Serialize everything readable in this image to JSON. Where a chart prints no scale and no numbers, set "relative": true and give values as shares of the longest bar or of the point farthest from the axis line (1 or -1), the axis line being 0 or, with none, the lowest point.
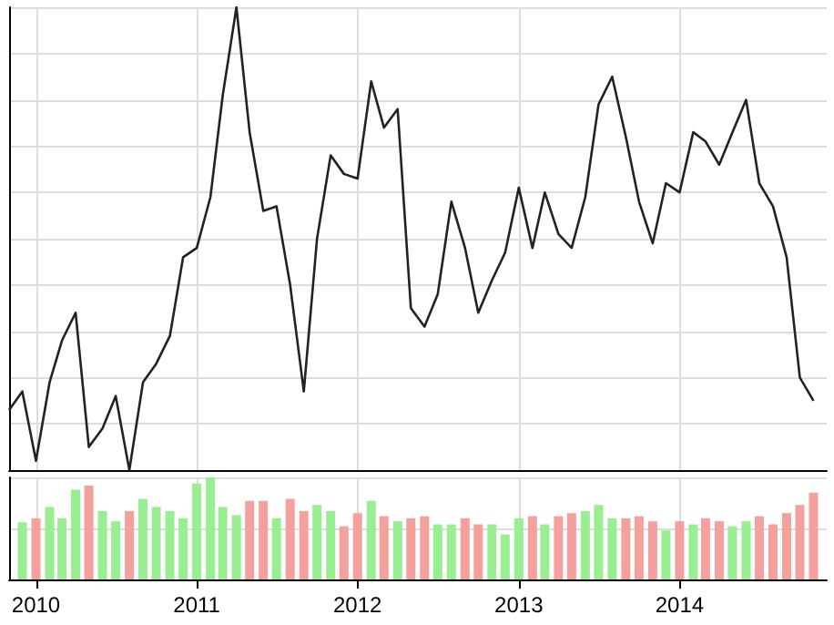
{
  "chart_data": [
    {
      "type": "line",
      "relative": true,
      "tick_labels": false,
      "grid": true,
      "marker": "none",
      "line_style": "solid",
      "xlim": [
        "2009-11",
        "2014-12"
      ],
      "xticks": [
        "2010",
        "2011",
        "2012",
        "2013",
        "2014"
      ],
      "series": [
        {
          "color": "#222222",
          "x": [
            "2009-11",
            "2009-12",
            "2010-01",
            "2010-02",
            "2010-03",
            "2010-04",
            "2010-05",
            "2010-06",
            "2010-07",
            "2010-08",
            "2010-09",
            "2010-10",
            "2010-11",
            "2010-12",
            "2011-01",
            "2011-02",
            "2011-03",
            "2011-04",
            "2011-05",
            "2011-06",
            "2011-07",
            "2011-08",
            "2011-09",
            "2011-10",
            "2011-11",
            "2011-12",
            "2012-01",
            "2012-02",
            "2012-03",
            "2012-04",
            "2012-05",
            "2012-06",
            "2012-07",
            "2012-08",
            "2012-09",
            "2012-10",
            "2012-11",
            "2012-12",
            "2013-01",
            "2013-02",
            "2013-03",
            "2013-04",
            "2013-05",
            "2013-06",
            "2013-07",
            "2013-08",
            "2013-09",
            "2013-10",
            "2013-11",
            "2013-12",
            "2014-01",
            "2014-02",
            "2014-03",
            "2014-04",
            "2014-05",
            "2014-06",
            "2014-07",
            "2014-08",
            "2014-09",
            "2014-10",
            "2014-11"
          ],
          "values": [
            0.13,
            0.17,
            0.02,
            0.19,
            0.28,
            0.34,
            0.05,
            0.09,
            0.16,
            0,
            0.19,
            0.23,
            0.29,
            0.46,
            0.48,
            0.59,
            0.81,
            1,
            0.73,
            0.56,
            0.57,
            0.4,
            0.17,
            0.5,
            0.68,
            0.64,
            0.63,
            0.84,
            0.74,
            0.78,
            0.35,
            0.31,
            0.38,
            0.58,
            0.48,
            0.34,
            0.41,
            0.47,
            0.61,
            0.48,
            0.6,
            0.51,
            0.48,
            0.59,
            0.79,
            0.85,
            0.72,
            0.58,
            0.49,
            0.62,
            0.6,
            0.73,
            0.71,
            0.66,
            0.73,
            0.8,
            0.62,
            0.57,
            0.46,
            0.2,
            0.15
          ]
        }
      ]
    },
    {
      "type": "bar",
      "relative": true,
      "tick_labels": "x",
      "grid": true,
      "xlim": [
        "2009-11",
        "2014-12"
      ],
      "xticks": [
        "2010",
        "2011",
        "2012",
        "2013",
        "2014"
      ],
      "x": [
        "2009-12",
        "2010-01",
        "2010-02",
        "2010-03",
        "2010-04",
        "2010-05",
        "2010-06",
        "2010-07",
        "2010-08",
        "2010-09",
        "2010-10",
        "2010-11",
        "2010-12",
        "2011-01",
        "2011-02",
        "2011-03",
        "2011-04",
        "2011-05",
        "2011-06",
        "2011-07",
        "2011-08",
        "2011-09",
        "2011-10",
        "2011-11",
        "2011-12",
        "2012-01",
        "2012-02",
        "2012-03",
        "2012-04",
        "2012-05",
        "2012-06",
        "2012-07",
        "2012-08",
        "2012-09",
        "2012-10",
        "2012-11",
        "2012-12",
        "2013-01",
        "2013-02",
        "2013-03",
        "2013-04",
        "2013-05",
        "2013-06",
        "2013-07",
        "2013-08",
        "2013-09",
        "2013-10",
        "2013-11",
        "2013-12",
        "2014-01",
        "2014-02",
        "2014-03",
        "2014-04",
        "2014-05",
        "2014-06",
        "2014-07",
        "2014-08",
        "2014-09",
        "2014-10",
        "2014-11"
      ],
      "values": [
        0.56,
        0.6,
        0.71,
        0.6,
        0.88,
        0.92,
        0.67,
        0.57,
        0.67,
        0.79,
        0.71,
        0.67,
        0.6,
        0.94,
        1,
        0.71,
        0.63,
        0.77,
        0.77,
        0.6,
        0.79,
        0.67,
        0.73,
        0.67,
        0.52,
        0.65,
        0.77,
        0.62,
        0.57,
        0.6,
        0.62,
        0.54,
        0.54,
        0.6,
        0.54,
        0.54,
        0.44,
        0.6,
        0.62,
        0.54,
        0.62,
        0.65,
        0.67,
        0.73,
        0.6,
        0.6,
        0.62,
        0.57,
        0.48,
        0.57,
        0.54,
        0.6,
        0.57,
        0.52,
        0.57,
        0.62,
        0.54,
        0.65,
        0.73,
        0.85
      ],
      "colors": [
        "#98ee90",
        "#f4a09c",
        "#98ee90",
        "#98ee90",
        "#98ee90",
        "#f4a09c",
        "#98ee90",
        "#98ee90",
        "#f4a09c",
        "#98ee90",
        "#98ee90",
        "#98ee90",
        "#98ee90",
        "#98ee90",
        "#98ee90",
        "#98ee90",
        "#98ee90",
        "#f4a09c",
        "#f4a09c",
        "#98ee90",
        "#f4a09c",
        "#f4a09c",
        "#98ee90",
        "#98ee90",
        "#f4a09c",
        "#f4a09c",
        "#98ee90",
        "#f4a09c",
        "#98ee90",
        "#f4a09c",
        "#f4a09c",
        "#98ee90",
        "#98ee90",
        "#f4a09c",
        "#f4a09c",
        "#98ee90",
        "#98ee90",
        "#98ee90",
        "#f4a09c",
        "#98ee90",
        "#f4a09c",
        "#f4a09c",
        "#98ee90",
        "#98ee90",
        "#98ee90",
        "#f4a09c",
        "#f4a09c",
        "#f4a09c",
        "#98ee90",
        "#f4a09c",
        "#98ee90",
        "#f4a09c",
        "#f4a09c",
        "#98ee90",
        "#98ee90",
        "#f4a09c",
        "#f4a09c",
        "#f4a09c",
        "#f4a09c",
        "#f4a09c"
      ]
    }
  ]
}
